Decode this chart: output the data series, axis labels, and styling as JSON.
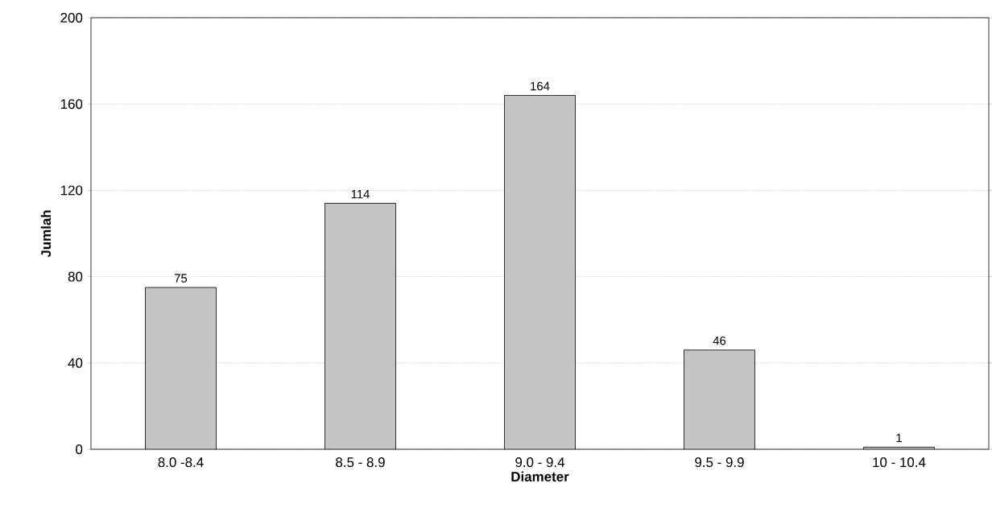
{
  "chart_data": {
    "type": "bar",
    "xlabel": "Diameter",
    "ylabel": "Jumlah",
    "categories": [
      "8.0 -8.4",
      "8.5 - 8.9",
      "9.0 - 9.4",
      "9.5 - 9.9",
      "10 - 10.4"
    ],
    "values": [
      75,
      114,
      164,
      46,
      1
    ],
    "color": "#c4c4c4",
    "ylim": [
      0,
      200
    ],
    "yticks": [
      0,
      40,
      80,
      120,
      160,
      200
    ],
    "grid": "y",
    "data_labels": true
  }
}
